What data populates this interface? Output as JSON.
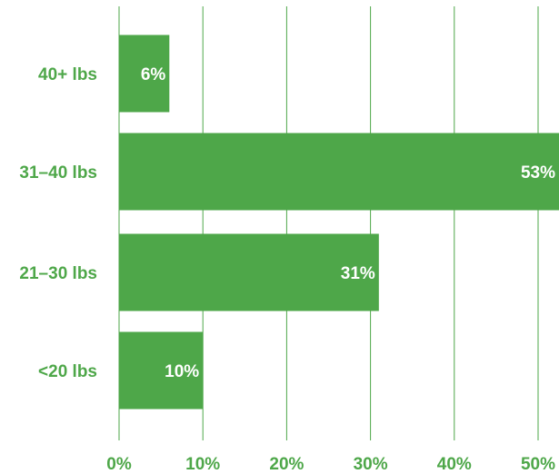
{
  "chart_data": {
    "type": "bar",
    "orientation": "horizontal",
    "categories": [
      "40+ lbs",
      "31–40 lbs",
      "21–30 lbs",
      "<20 lbs"
    ],
    "values": [
      6,
      53,
      31,
      10
    ],
    "data_labels": [
      "6%",
      "53%",
      "31%",
      "10%"
    ],
    "x_ticks": [
      "0%",
      "10%",
      "20%",
      "30%",
      "40%",
      "50%"
    ],
    "xlim": [
      0,
      53
    ],
    "grid": true,
    "legend": "none",
    "colors": {
      "bar": "#4ea749",
      "text": "#4ea749",
      "grid": "#4ea749",
      "data_label": "#ffffff"
    }
  }
}
